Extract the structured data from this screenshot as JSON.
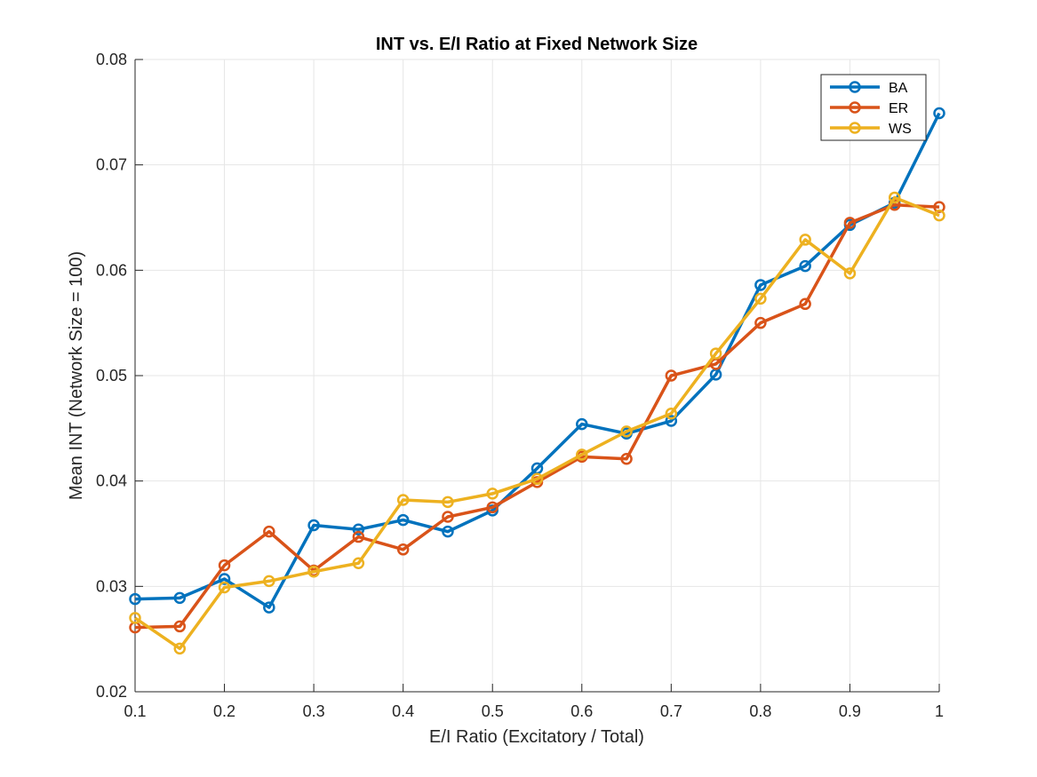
{
  "chart_data": {
    "type": "line",
    "title": "INT vs. E/I Ratio at Fixed Network Size",
    "xlabel": "E/I Ratio (Excitatory / Total)",
    "ylabel": "Mean INT (Network Size = 100)",
    "xlim": [
      0.1,
      1
    ],
    "ylim": [
      0.02,
      0.08
    ],
    "xticks": [
      "0.1",
      "0.2",
      "0.3",
      "0.4",
      "0.5",
      "0.6",
      "0.7",
      "0.8",
      "0.9",
      "1"
    ],
    "yticks": [
      "0.02",
      "0.03",
      "0.04",
      "0.05",
      "0.06",
      "0.07",
      "0.08"
    ],
    "grid": true,
    "legend_position": "top-right",
    "x": [
      0.1,
      0.15,
      0.2,
      0.25,
      0.3,
      0.35,
      0.4,
      0.45,
      0.5,
      0.55,
      0.6,
      0.65,
      0.7,
      0.75,
      0.8,
      0.85,
      0.9,
      0.95,
      1.0
    ],
    "series": [
      {
        "name": "BA",
        "color": "#0072BD",
        "values": [
          0.0288,
          0.0289,
          0.0307,
          0.028,
          0.0358,
          0.0354,
          0.0363,
          0.0352,
          0.0372,
          0.0412,
          0.0454,
          0.0445,
          0.0457,
          0.0501,
          0.0586,
          0.0604,
          0.0643,
          0.0664,
          0.0749
        ]
      },
      {
        "name": "ER",
        "color": "#D95319",
        "values": [
          0.0261,
          0.0262,
          0.032,
          0.0352,
          0.0315,
          0.0347,
          0.0335,
          0.0366,
          0.0375,
          0.0399,
          0.0423,
          0.0421,
          0.05,
          0.0511,
          0.055,
          0.0568,
          0.0645,
          0.0662,
          0.066
        ]
      },
      {
        "name": "WS",
        "color": "#EDB120",
        "values": [
          0.027,
          0.0241,
          0.0299,
          0.0305,
          0.0314,
          0.0322,
          0.0382,
          0.038,
          0.0388,
          0.0402,
          0.0425,
          0.0447,
          0.0464,
          0.0521,
          0.0573,
          0.0629,
          0.0597,
          0.0669,
          0.0652
        ]
      }
    ]
  }
}
